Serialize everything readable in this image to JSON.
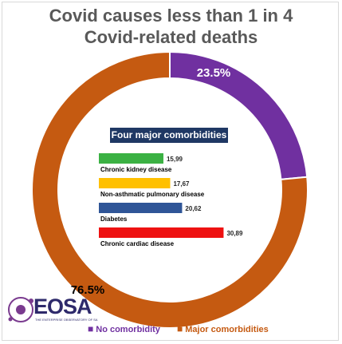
{
  "title_line1": "Covid causes less than 1 in 4",
  "title_line2": "Covid-related deaths",
  "chart_data": [
    {
      "type": "pie",
      "slices": [
        {
          "name": "No comorbidity",
          "value": 23.5,
          "label": "23.5%",
          "color": "#7030a0"
        },
        {
          "name": "Major comorbidities",
          "value": 76.5,
          "label": "76.5%",
          "color": "#c55a11"
        }
      ],
      "legend_position": "bottom"
    },
    {
      "type": "bar",
      "orientation": "horizontal",
      "title": "Four major comorbidities",
      "categories": [
        "Chronic kidney disease",
        "Non-asthmatic pulmonary disease",
        "Diabetes",
        "Chronic cardiac disease"
      ],
      "values": [
        15.99,
        17.67,
        20.62,
        30.89
      ],
      "value_labels": [
        "15,99",
        "17,67",
        "20,62",
        "30,89"
      ],
      "colors": [
        "#3bb143",
        "#ffc000",
        "#2f5597",
        "#ee1111"
      ]
    }
  ],
  "logo": {
    "text": "EOSA",
    "subtitle": "THE ENTERPRISE OBSERVATORY OF SA"
  }
}
